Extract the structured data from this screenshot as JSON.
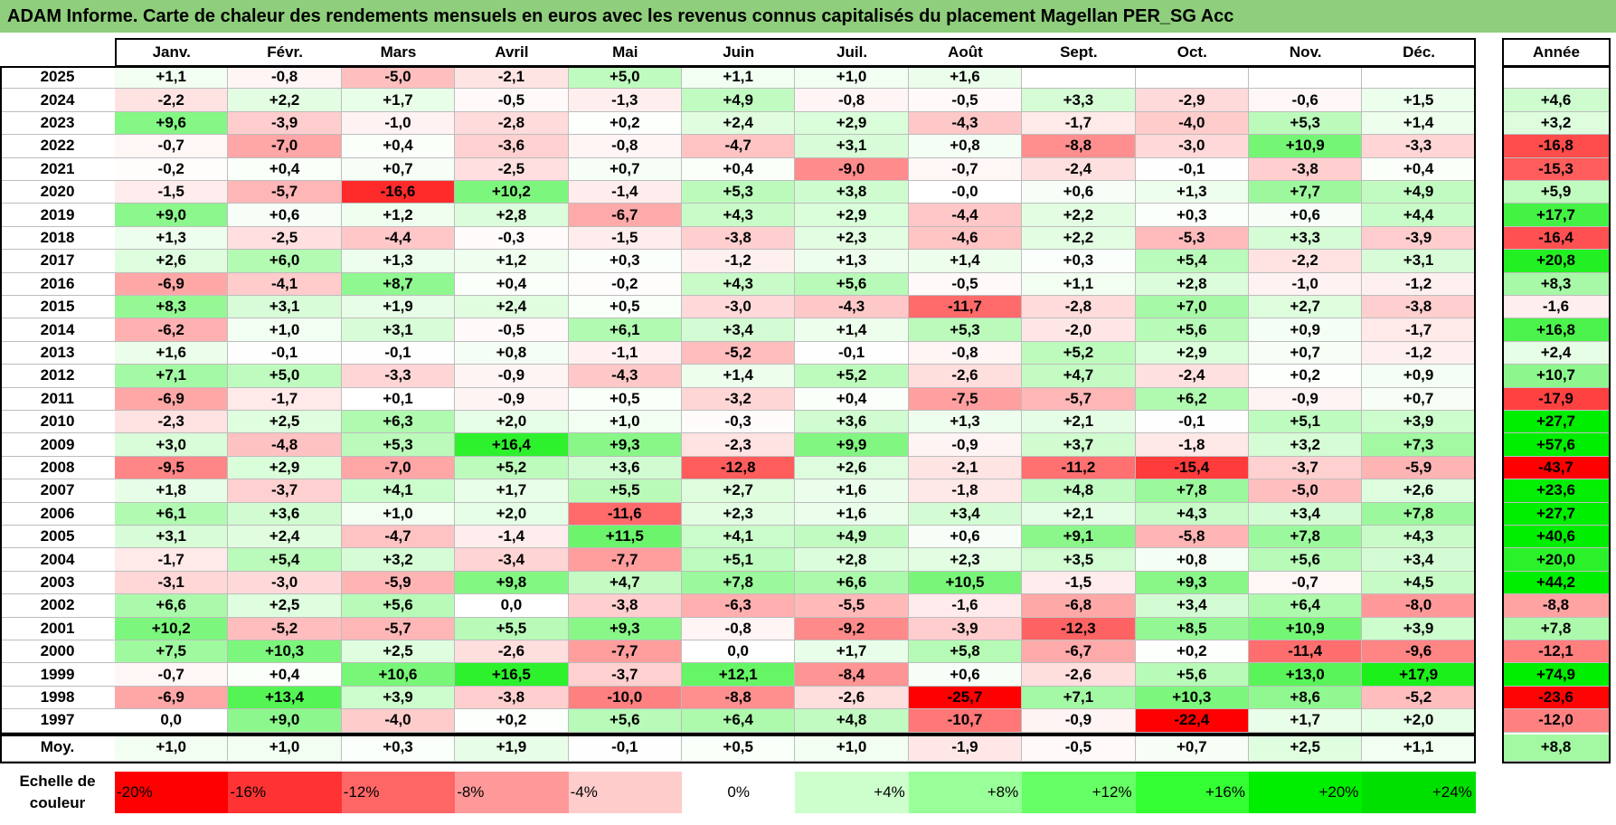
{
  "title": "ADAM Informe. Carte de chaleur des rendements mensuels en euros avec les revenus connus capitalisés du placement Magellan PER_SG Acc",
  "colors": {
    "title_bg": "#8fce7c",
    "negative_max": "#ff0000",
    "positive_max": "#00ee00",
    "neutral": "#ffffff"
  },
  "chart_data": {
    "type": "heatmap",
    "title": "ADAM Informe. Carte de chaleur des rendements mensuels en euros avec les revenus connus capitalisés du placement Magellan PER_SG Acc",
    "months": [
      "Janv.",
      "Févr.",
      "Mars",
      "Avril",
      "Mai",
      "Juin",
      "Juil.",
      "Août",
      "Sept.",
      "Oct.",
      "Nov.",
      "Déc."
    ],
    "year_header": "Année",
    "rows": [
      {
        "year": "2025",
        "values": [
          "+1,1",
          "-0,8",
          "-5,0",
          "-2,1",
          "+5,0",
          "+1,1",
          "+1,0",
          "+1,6",
          "",
          "",
          "",
          ""
        ],
        "annual": ""
      },
      {
        "year": "2024",
        "values": [
          "-2,2",
          "+2,2",
          "+1,7",
          "-0,5",
          "-1,3",
          "+4,9",
          "-0,8",
          "-0,5",
          "+3,3",
          "-2,9",
          "-0,6",
          "+1,5"
        ],
        "annual": "+4,6"
      },
      {
        "year": "2023",
        "values": [
          "+9,6",
          "-3,9",
          "-1,0",
          "-2,8",
          "+0,2",
          "+2,4",
          "+2,9",
          "-4,3",
          "-1,7",
          "-4,0",
          "+5,3",
          "+1,4"
        ],
        "annual": "+3,2"
      },
      {
        "year": "2022",
        "values": [
          "-0,7",
          "-7,0",
          "+0,4",
          "-3,6",
          "-0,8",
          "-4,7",
          "+3,1",
          "+0,8",
          "-8,8",
          "-3,0",
          "+10,9",
          "-3,3"
        ],
        "annual": "-16,8"
      },
      {
        "year": "2021",
        "values": [
          "-0,2",
          "+0,4",
          "+0,7",
          "-2,5",
          "+0,7",
          "+0,4",
          "-9,0",
          "-0,7",
          "-2,4",
          "-0,1",
          "-3,8",
          "+0,4"
        ],
        "annual": "-15,3"
      },
      {
        "year": "2020",
        "values": [
          "-1,5",
          "-5,7",
          "-16,6",
          "+10,2",
          "-1,4",
          "+5,3",
          "+3,8",
          "-0,0",
          "+0,6",
          "+1,3",
          "+7,7",
          "+4,9"
        ],
        "annual": "+5,9"
      },
      {
        "year": "2019",
        "values": [
          "+9,0",
          "+0,6",
          "+1,2",
          "+2,8",
          "-6,7",
          "+4,3",
          "+2,9",
          "-4,4",
          "+2,2",
          "+0,3",
          "+0,6",
          "+4,4"
        ],
        "annual": "+17,7"
      },
      {
        "year": "2018",
        "values": [
          "+1,3",
          "-2,5",
          "-4,4",
          "-0,3",
          "-1,5",
          "-3,8",
          "+2,3",
          "-4,6",
          "+2,2",
          "-5,3",
          "+3,3",
          "-3,9"
        ],
        "annual": "-16,4"
      },
      {
        "year": "2017",
        "values": [
          "+2,6",
          "+6,0",
          "+1,3",
          "+1,2",
          "+0,3",
          "-1,2",
          "+1,3",
          "+1,4",
          "+0,3",
          "+5,4",
          "-2,2",
          "+3,1"
        ],
        "annual": "+20,8"
      },
      {
        "year": "2016",
        "values": [
          "-6,9",
          "-4,1",
          "+8,7",
          "+0,4",
          "-0,2",
          "+4,3",
          "+5,6",
          "-0,5",
          "+1,1",
          "+2,8",
          "-1,0",
          "-1,2"
        ],
        "annual": "+8,3"
      },
      {
        "year": "2015",
        "values": [
          "+8,3",
          "+3,1",
          "+1,9",
          "+2,4",
          "+0,5",
          "-3,0",
          "-4,3",
          "-11,7",
          "-2,8",
          "+7,0",
          "+2,7",
          "-3,8"
        ],
        "annual": "-1,6"
      },
      {
        "year": "2014",
        "values": [
          "-6,2",
          "+1,0",
          "+3,1",
          "-0,5",
          "+6,1",
          "+3,4",
          "+1,4",
          "+5,3",
          "-2,0",
          "+5,6",
          "+0,9",
          "-1,7"
        ],
        "annual": "+16,8"
      },
      {
        "year": "2013",
        "values": [
          "+1,6",
          "-0,1",
          "-0,1",
          "+0,8",
          "-1,1",
          "-5,2",
          "-0,1",
          "-0,8",
          "+5,2",
          "+2,9",
          "+0,7",
          "-1,2"
        ],
        "annual": "+2,4"
      },
      {
        "year": "2012",
        "values": [
          "+7,1",
          "+5,0",
          "-3,3",
          "-0,9",
          "-4,3",
          "+1,4",
          "+5,2",
          "-2,6",
          "+4,7",
          "-2,4",
          "+0,2",
          "+0,9"
        ],
        "annual": "+10,7"
      },
      {
        "year": "2011",
        "values": [
          "-6,9",
          "-1,7",
          "+0,1",
          "-0,9",
          "+0,5",
          "-3,2",
          "+0,4",
          "-7,5",
          "-5,7",
          "+6,2",
          "-0,9",
          "+0,7"
        ],
        "annual": "-17,9"
      },
      {
        "year": "2010",
        "values": [
          "-2,3",
          "+2,5",
          "+6,3",
          "+2,0",
          "+1,0",
          "-0,3",
          "+3,6",
          "+1,3",
          "+2,1",
          "-0,1",
          "+5,1",
          "+3,9"
        ],
        "annual": "+27,7"
      },
      {
        "year": "2009",
        "values": [
          "+3,0",
          "-4,8",
          "+5,3",
          "+16,4",
          "+9,3",
          "-2,3",
          "+9,9",
          "-0,9",
          "+3,7",
          "-1,8",
          "+3,2",
          "+7,3"
        ],
        "annual": "+57,6"
      },
      {
        "year": "2008",
        "values": [
          "-9,5",
          "+2,9",
          "-7,0",
          "+5,2",
          "+3,6",
          "-12,8",
          "+2,6",
          "-2,1",
          "-11,2",
          "-15,4",
          "-3,7",
          "-5,9"
        ],
        "annual": "-43,7"
      },
      {
        "year": "2007",
        "values": [
          "+1,8",
          "-3,7",
          "+4,1",
          "+1,7",
          "+5,5",
          "+2,7",
          "+1,6",
          "-1,8",
          "+4,8",
          "+7,8",
          "-5,0",
          "+2,6"
        ],
        "annual": "+23,6"
      },
      {
        "year": "2006",
        "values": [
          "+6,1",
          "+3,6",
          "+1,0",
          "+2,0",
          "-11,6",
          "+2,3",
          "+1,6",
          "+3,4",
          "+2,1",
          "+4,3",
          "+3,4",
          "+7,8"
        ],
        "annual": "+27,7"
      },
      {
        "year": "2005",
        "values": [
          "+3,1",
          "+2,4",
          "-4,7",
          "-1,4",
          "+11,5",
          "+4,1",
          "+4,9",
          "+0,6",
          "+9,1",
          "-5,8",
          "+7,8",
          "+4,3"
        ],
        "annual": "+40,6"
      },
      {
        "year": "2004",
        "values": [
          "-1,7",
          "+5,4",
          "+3,2",
          "-3,4",
          "-7,7",
          "+5,1",
          "+2,8",
          "+2,3",
          "+3,5",
          "+0,8",
          "+5,6",
          "+3,4"
        ],
        "annual": "+20,0"
      },
      {
        "year": "2003",
        "values": [
          "-3,1",
          "-3,0",
          "-5,9",
          "+9,8",
          "+4,7",
          "+7,8",
          "+6,6",
          "+10,5",
          "-1,5",
          "+9,3",
          "-0,7",
          "+4,5"
        ],
        "annual": "+44,2"
      },
      {
        "year": "2002",
        "values": [
          "+6,6",
          "+2,5",
          "+5,6",
          "0,0",
          "-3,8",
          "-6,3",
          "-5,5",
          "-1,6",
          "-6,8",
          "+3,4",
          "+6,4",
          "-8,0"
        ],
        "annual": "-8,8"
      },
      {
        "year": "2001",
        "values": [
          "+10,2",
          "-5,2",
          "-5,7",
          "+5,5",
          "+9,3",
          "-0,8",
          "-9,2",
          "-3,9",
          "-12,3",
          "+8,5",
          "+10,9",
          "+3,9"
        ],
        "annual": "+7,8"
      },
      {
        "year": "2000",
        "values": [
          "+7,5",
          "+10,3",
          "+2,5",
          "-2,6",
          "-7,7",
          "0,0",
          "+1,7",
          "+5,8",
          "-6,7",
          "+0,2",
          "-11,4",
          "-9,6"
        ],
        "annual": "-12,1"
      },
      {
        "year": "1999",
        "values": [
          "-0,7",
          "+0,4",
          "+10,6",
          "+16,5",
          "-3,7",
          "+12,1",
          "-8,4",
          "+0,6",
          "-2,6",
          "+5,6",
          "+13,0",
          "+17,9"
        ],
        "annual": "+74,9"
      },
      {
        "year": "1998",
        "values": [
          "-6,9",
          "+13,4",
          "+3,9",
          "-3,8",
          "-10,0",
          "-8,8",
          "-2,6",
          "-25,7",
          "+7,1",
          "+10,3",
          "+8,6",
          "-5,2"
        ],
        "annual": "-23,6"
      },
      {
        "year": "1997",
        "values": [
          "0,0",
          "+9,0",
          "-4,0",
          "+0,2",
          "+5,6",
          "+6,4",
          "+4,8",
          "-10,7",
          "-0,9",
          "-22,4",
          "+1,7",
          "+2,0"
        ],
        "annual": "-12,0"
      }
    ],
    "average": {
      "label": "Moy.",
      "values": [
        "+1,0",
        "+1,0",
        "+0,3",
        "+1,9",
        "-0,1",
        "+0,5",
        "+1,0",
        "-1,9",
        "-0,5",
        "+0,7",
        "+2,5",
        "+1,1"
      ],
      "annual": "+8,8"
    },
    "scale": {
      "label_line1": "Echelle de",
      "label_line2": "couleur",
      "stops": [
        {
          "label": "-20%",
          "value": -20,
          "color": "#ff0000"
        },
        {
          "label": "-16%",
          "value": -16,
          "color": "#ff3333"
        },
        {
          "label": "-12%",
          "value": -12,
          "color": "#ff6666"
        },
        {
          "label": "-8%",
          "value": -8,
          "color": "#ff9999"
        },
        {
          "label": "-4%",
          "value": -4,
          "color": "#ffcccc"
        },
        {
          "label": "0%",
          "value": 0,
          "color": "#ffffff"
        },
        {
          "label": "+4%",
          "value": 4,
          "color": "#ccffcc"
        },
        {
          "label": "+8%",
          "value": 8,
          "color": "#99ff99"
        },
        {
          "label": "+12%",
          "value": 12,
          "color": "#66ff66"
        },
        {
          "label": "+16%",
          "value": 16,
          "color": "#33ff33"
        },
        {
          "label": "+20%",
          "value": 20,
          "color": "#00ee00"
        },
        {
          "label": "+24%",
          "value": 24,
          "color": "#00e000"
        }
      ]
    }
  }
}
